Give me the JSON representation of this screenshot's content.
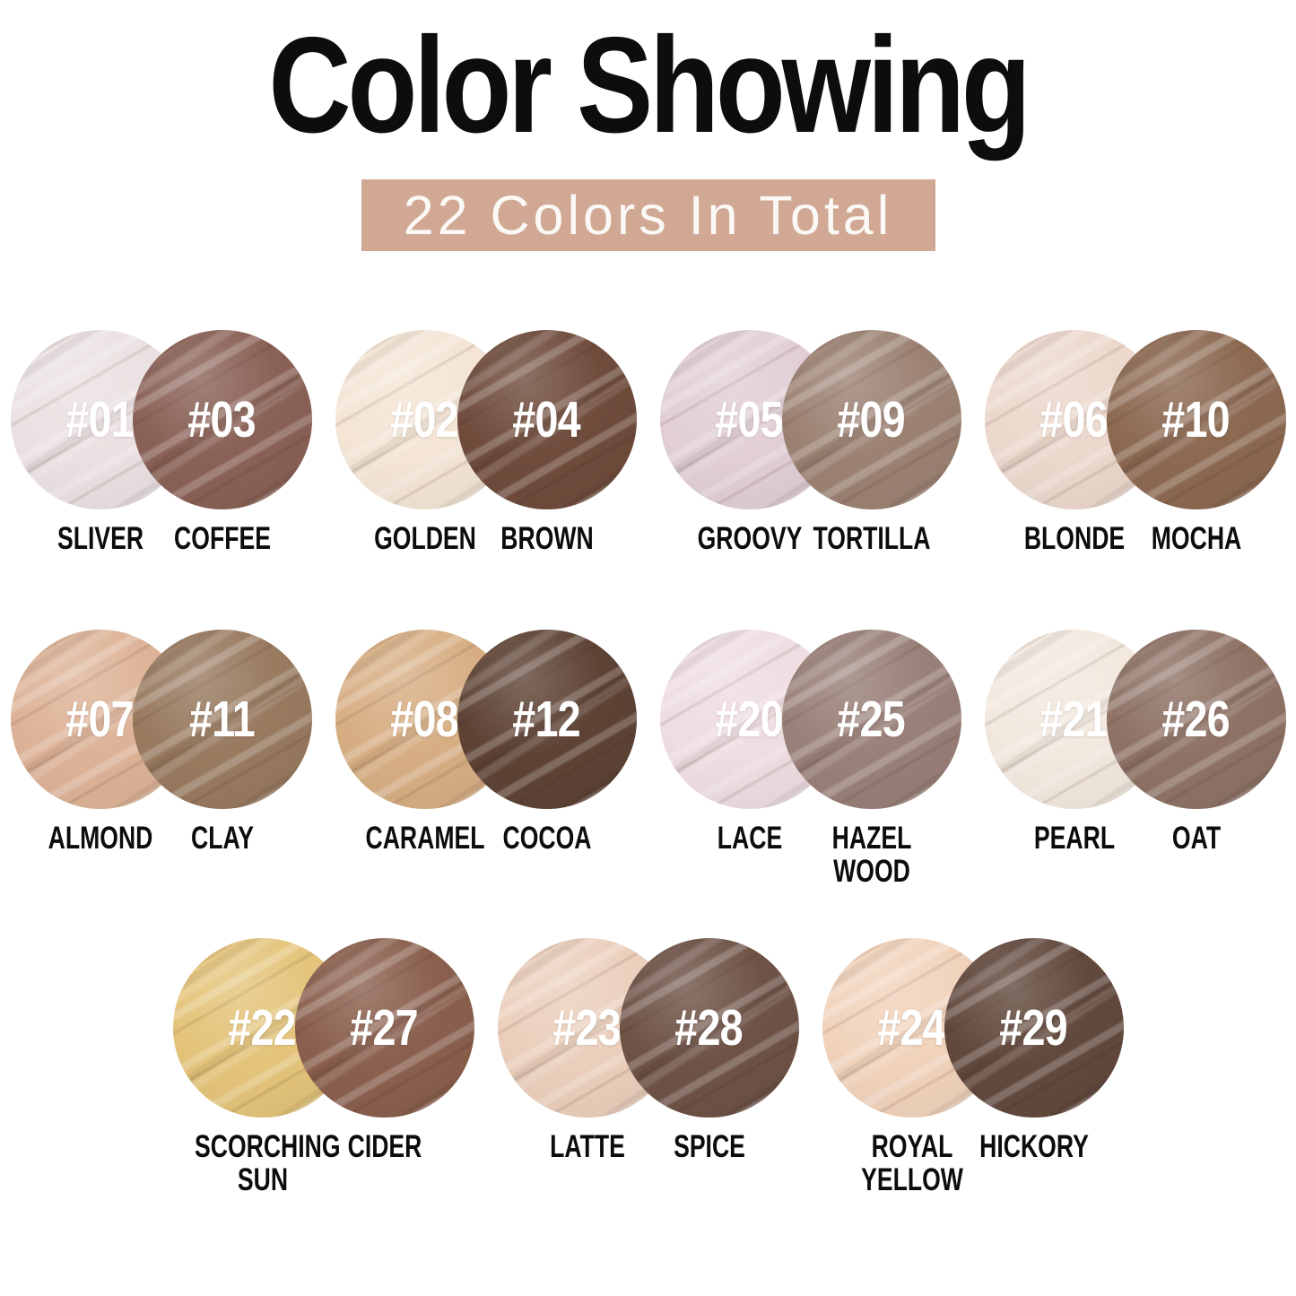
{
  "title": "Color Showing",
  "banner": {
    "text": "22 Colors In Total",
    "bg_color": "#d1a894",
    "text_color": "#fbf9f5"
  },
  "rows": [
    {
      "pairs": [
        {
          "left": {
            "num": "#01",
            "name": "SLIVER",
            "color": "#ebe1e2"
          },
          "right": {
            "num": "#03",
            "name": "COFFEE",
            "color": "#8a6156"
          }
        },
        {
          "left": {
            "num": "#02",
            "name": "GOLDEN",
            "color": "#f4e5d5"
          },
          "right": {
            "num": "#04",
            "name": "BROWN",
            "color": "#6f4c3c"
          }
        },
        {
          "left": {
            "num": "#05",
            "name": "GROOVY",
            "color": "#e1cfd5"
          },
          "right": {
            "num": "#09",
            "name": "TORTILLA",
            "color": "#9c8273"
          }
        },
        {
          "left": {
            "num": "#06",
            "name": "BLONDE",
            "color": "#ecd8cc"
          },
          "right": {
            "num": "#10",
            "name": "MOCHA",
            "color": "#8c6951"
          }
        }
      ]
    },
    {
      "pairs": [
        {
          "left": {
            "num": "#07",
            "name": "ALMOND",
            "color": "#ddb397"
          },
          "right": {
            "num": "#11",
            "name": "CLAY",
            "color": "#987a5f"
          }
        },
        {
          "left": {
            "num": "#08",
            "name": "CARAMEL",
            "color": "#d7ae83"
          },
          "right": {
            "num": "#12",
            "name": "COCOA",
            "color": "#5e4335"
          }
        },
        {
          "left": {
            "num": "#20",
            "name": "LACE",
            "color": "#eedde1"
          },
          "right": {
            "num": "#25",
            "name": "HAZEL WOOD",
            "color": "#998078"
          }
        },
        {
          "left": {
            "num": "#21",
            "name": "PEARL",
            "color": "#f2e8de"
          },
          "right": {
            "num": "#26",
            "name": "OAT",
            "color": "#8e7265"
          }
        }
      ]
    },
    {
      "pairs": [
        {
          "left": {
            "num": "#22",
            "name": "SCORCHING SUN",
            "color": "#e4c47a"
          },
          "right": {
            "num": "#27",
            "name": "CIDER",
            "color": "#8a5f4d"
          }
        },
        {
          "left": {
            "num": "#23",
            "name": "LATTE",
            "color": "#ebcfbc"
          },
          "right": {
            "num": "#28",
            "name": "SPICE",
            "color": "#6e5246"
          }
        },
        {
          "left": {
            "num": "#24",
            "name": "ROYAL YELLOW",
            "color": "#f1d3bb"
          },
          "right": {
            "num": "#29",
            "name": "HICKORY",
            "color": "#62493d"
          }
        }
      ]
    }
  ]
}
